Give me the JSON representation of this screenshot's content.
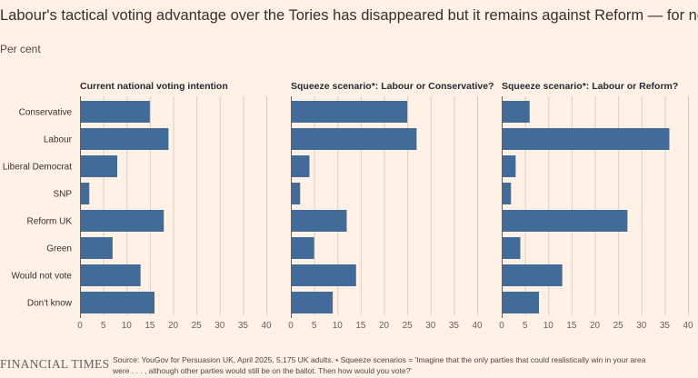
{
  "title": "Labour's tactical voting advantage over the Tories has disappeared but it remains against Reform — for now",
  "subtitle": "Per cent",
  "brand": "FINANCIAL TIMES",
  "source_line1": "Source: YouGov for Persuasion UK, April 2025, 5,175 UK adults. • Squeeze scenarios = 'Imagine that the only parties that could realistically win in your area",
  "source_line2": "were . . . , although other parties would still be on the ballot. Then how would you vote?'",
  "colors": {
    "bar": "#416b99",
    "background": "#fff1e5"
  },
  "chart_data": {
    "type": "bar",
    "orientation": "horizontal",
    "categories": [
      "Conservative",
      "Labour",
      "Liberal Democrat",
      "SNP",
      "Reform UK",
      "Green",
      "Would not vote",
      "Don't know"
    ],
    "xlim": [
      0,
      40
    ],
    "ticks": [
      0,
      5,
      10,
      15,
      20,
      25,
      30,
      35,
      40
    ],
    "panels": [
      {
        "title": "Current national voting intention",
        "values": [
          15,
          19,
          8,
          2,
          18,
          7,
          13,
          16
        ]
      },
      {
        "title": "Squeeze scenario*: Labour or Conservative?",
        "values": [
          25,
          27,
          4,
          2,
          12,
          5,
          14,
          9
        ]
      },
      {
        "title": "Squeeze scenario*: Labour or Reform?",
        "values": [
          6,
          36,
          3,
          2,
          27,
          4,
          13,
          8
        ]
      }
    ]
  }
}
